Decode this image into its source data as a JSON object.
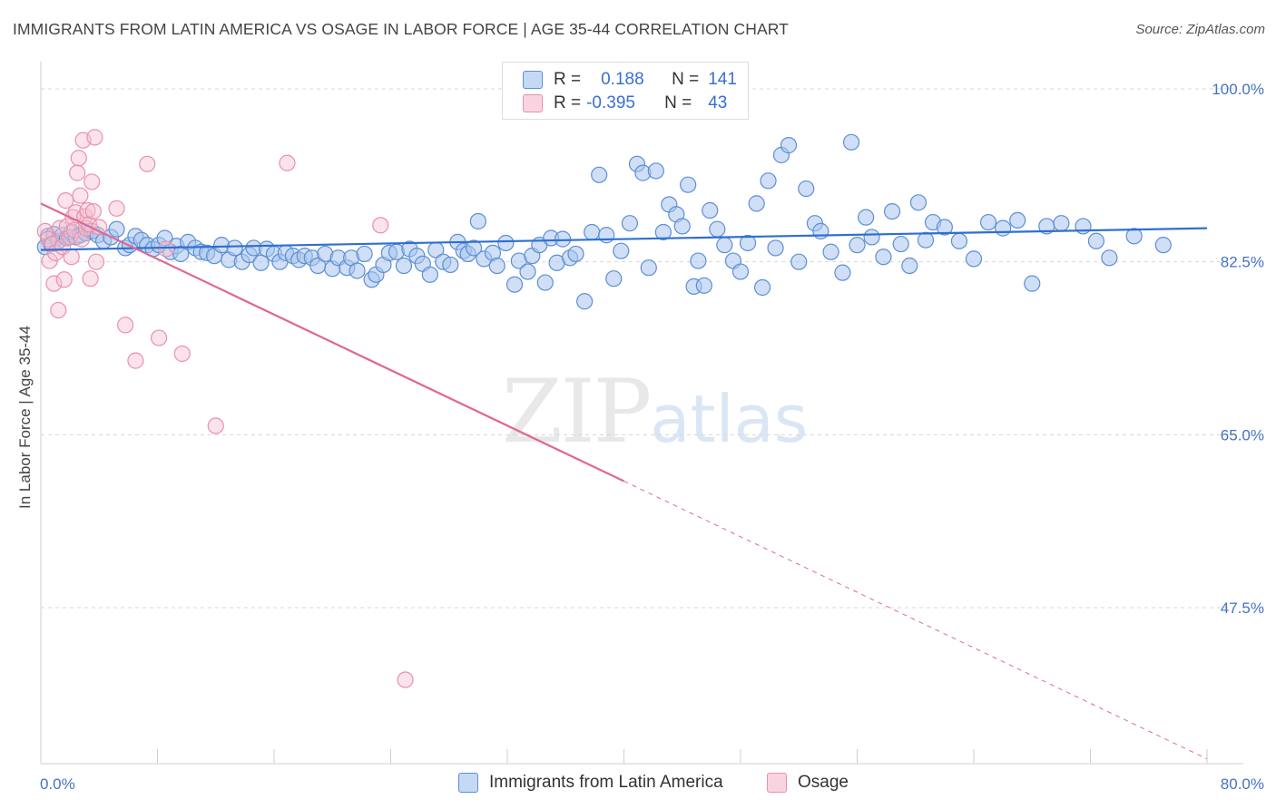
{
  "title": "IMMIGRANTS FROM LATIN AMERICA VS OSAGE IN LABOR FORCE | AGE 35-44 CORRELATION CHART",
  "source": "Source: ZipAtlas.com",
  "watermark": {
    "zip": "ZIP",
    "atlas": "atlas"
  },
  "legend": {
    "rows": [
      {
        "r_label": "R =",
        "r_value": "0.188",
        "n_label": "N =",
        "n_value": "141"
      },
      {
        "r_label": "R =",
        "r_value": "-0.395",
        "n_label": "N =",
        "n_value": "43"
      }
    ]
  },
  "colors": {
    "blue_fill": "#a9c4ec",
    "blue_stroke": "#5b8fd6",
    "blue_line": "#2d6fd1",
    "pink_fill": "#f5c0d1",
    "pink_stroke": "#e990ae",
    "pink_line": "#e06792",
    "grid": "#d8d8d8",
    "axis_label": "#4472c4"
  },
  "chart_data": {
    "type": "scatter",
    "title": "IMMIGRANTS FROM LATIN AMERICA VS OSAGE IN LABOR FORCE | AGE 35-44 CORRELATION CHART",
    "xlabel": "",
    "ylabel": "In Labor Force | Age 35-44",
    "xlim": [
      0,
      80
    ],
    "ylim": [
      31.5,
      102
    ],
    "x_tick_labels": [
      "0.0%",
      "80.0%"
    ],
    "y_ticks": [
      47.5,
      65.0,
      82.5,
      100.0
    ],
    "y_tick_labels": [
      "47.5%",
      "65.0%",
      "82.5%",
      "100.0%"
    ],
    "grid": true,
    "legend_position": "top-center",
    "series": [
      {
        "name": "Immigrants from Latin America",
        "r": 0.188,
        "n": 141,
        "trend": {
          "x": [
            0,
            80
          ],
          "y": [
            83.7,
            85.9
          ]
        },
        "points": [
          [
            0.3,
            84.0
          ],
          [
            0.5,
            85.1
          ],
          [
            0.7,
            84.3
          ],
          [
            0.9,
            85.3
          ],
          [
            1.2,
            84.6
          ],
          [
            1.5,
            85.2
          ],
          [
            1.8,
            84.9
          ],
          [
            2.1,
            85.5
          ],
          [
            2.4,
            85.0
          ],
          [
            2.7,
            85.2
          ],
          [
            3.1,
            85.4
          ],
          [
            3.5,
            85.6
          ],
          [
            3.9,
            85.2
          ],
          [
            4.3,
            84.6
          ],
          [
            4.8,
            85.0
          ],
          [
            5.2,
            85.8
          ],
          [
            5.8,
            83.9
          ],
          [
            6.1,
            84.2
          ],
          [
            6.5,
            85.1
          ],
          [
            6.9,
            84.7
          ],
          [
            7.3,
            84.2
          ],
          [
            7.7,
            83.8
          ],
          [
            8.1,
            84.2
          ],
          [
            8.5,
            84.9
          ],
          [
            8.9,
            83.5
          ],
          [
            9.3,
            84.1
          ],
          [
            9.6,
            83.3
          ],
          [
            10.1,
            84.5
          ],
          [
            10.6,
            83.9
          ],
          [
            11.0,
            83.5
          ],
          [
            11.4,
            83.4
          ],
          [
            11.9,
            83.1
          ],
          [
            12.4,
            84.2
          ],
          [
            12.9,
            82.7
          ],
          [
            13.3,
            83.9
          ],
          [
            13.8,
            82.5
          ],
          [
            14.3,
            83.2
          ],
          [
            14.6,
            83.9
          ],
          [
            15.1,
            82.4
          ],
          [
            15.5,
            83.8
          ],
          [
            16.0,
            83.3
          ],
          [
            16.4,
            82.5
          ],
          [
            16.8,
            83.4
          ],
          [
            17.3,
            83.1
          ],
          [
            17.7,
            82.7
          ],
          [
            18.1,
            83.1
          ],
          [
            18.6,
            82.9
          ],
          [
            19.0,
            82.1
          ],
          [
            19.5,
            83.3
          ],
          [
            20.0,
            81.8
          ],
          [
            20.4,
            82.9
          ],
          [
            21.0,
            81.9
          ],
          [
            21.3,
            82.9
          ],
          [
            21.7,
            81.6
          ],
          [
            22.2,
            83.3
          ],
          [
            22.7,
            80.7
          ],
          [
            23.0,
            81.2
          ],
          [
            23.5,
            82.2
          ],
          [
            23.9,
            83.4
          ],
          [
            24.4,
            83.5
          ],
          [
            24.9,
            82.1
          ],
          [
            25.3,
            83.8
          ],
          [
            25.8,
            83.1
          ],
          [
            26.2,
            82.3
          ],
          [
            26.7,
            81.2
          ],
          [
            27.1,
            83.7
          ],
          [
            27.6,
            82.5
          ],
          [
            28.1,
            82.2
          ],
          [
            28.6,
            84.5
          ],
          [
            29.0,
            83.6
          ],
          [
            29.3,
            83.3
          ],
          [
            29.7,
            83.9
          ],
          [
            30.0,
            86.6
          ],
          [
            30.4,
            82.8
          ],
          [
            31.0,
            83.4
          ],
          [
            31.3,
            82.1
          ],
          [
            31.9,
            84.4
          ],
          [
            32.5,
            80.2
          ],
          [
            32.8,
            82.6
          ],
          [
            33.4,
            81.5
          ],
          [
            33.7,
            83.1
          ],
          [
            34.2,
            84.2
          ],
          [
            34.6,
            80.4
          ],
          [
            35.0,
            84.9
          ],
          [
            35.4,
            82.4
          ],
          [
            35.8,
            84.8
          ],
          [
            36.3,
            82.9
          ],
          [
            36.7,
            83.3
          ],
          [
            37.3,
            78.5
          ],
          [
            37.8,
            85.5
          ],
          [
            38.3,
            91.3
          ],
          [
            38.8,
            85.2
          ],
          [
            39.3,
            80.8
          ],
          [
            39.8,
            83.6
          ],
          [
            40.4,
            86.4
          ],
          [
            40.9,
            92.4
          ],
          [
            41.3,
            91.5
          ],
          [
            41.7,
            81.9
          ],
          [
            42.2,
            91.7
          ],
          [
            42.7,
            85.5
          ],
          [
            43.1,
            88.3
          ],
          [
            43.6,
            87.3
          ],
          [
            44.0,
            86.1
          ],
          [
            44.4,
            90.3
          ],
          [
            44.8,
            80.0
          ],
          [
            45.1,
            82.6
          ],
          [
            45.5,
            80.1
          ],
          [
            45.9,
            87.7
          ],
          [
            46.4,
            85.8
          ],
          [
            46.9,
            84.2
          ],
          [
            47.5,
            82.6
          ],
          [
            48.0,
            81.5
          ],
          [
            48.5,
            84.4
          ],
          [
            49.1,
            88.4
          ],
          [
            49.5,
            79.9
          ],
          [
            49.9,
            90.7
          ],
          [
            50.4,
            83.9
          ],
          [
            50.8,
            93.3
          ],
          [
            51.3,
            94.3
          ],
          [
            52.0,
            82.5
          ],
          [
            52.5,
            89.9
          ],
          [
            53.1,
            86.4
          ],
          [
            53.5,
            85.6
          ],
          [
            54.2,
            83.5
          ],
          [
            55.0,
            81.4
          ],
          [
            55.6,
            94.6
          ],
          [
            56.0,
            84.2
          ],
          [
            56.6,
            87.0
          ],
          [
            57.0,
            85.0
          ],
          [
            57.8,
            83.0
          ],
          [
            58.4,
            87.6
          ],
          [
            59.0,
            84.3
          ],
          [
            59.6,
            82.1
          ],
          [
            60.2,
            88.5
          ],
          [
            60.7,
            84.7
          ],
          [
            61.2,
            86.5
          ],
          [
            62.0,
            86.0
          ],
          [
            63.0,
            84.6
          ],
          [
            64.0,
            82.8
          ],
          [
            65.0,
            86.5
          ],
          [
            66.0,
            85.9
          ],
          [
            67.0,
            86.7
          ],
          [
            68.0,
            80.3
          ],
          [
            69.0,
            86.1
          ],
          [
            70.0,
            86.4
          ],
          [
            71.5,
            86.1
          ],
          [
            72.4,
            84.6
          ],
          [
            73.3,
            82.9
          ],
          [
            75.0,
            85.1
          ],
          [
            77.0,
            84.2
          ]
        ]
      },
      {
        "name": "Osage",
        "r": -0.395,
        "n": 43,
        "trend": {
          "x": [
            0,
            40
          ],
          "y": [
            88.4,
            60.3
          ]
        },
        "trend_dashed": {
          "x": [
            40,
            80
          ],
          "y": [
            60.3,
            32.2
          ]
        },
        "points": [
          [
            0.3,
            85.6
          ],
          [
            0.5,
            84.8
          ],
          [
            0.6,
            82.6
          ],
          [
            0.8,
            84.3
          ],
          [
            0.9,
            80.3
          ],
          [
            1.0,
            83.4
          ],
          [
            1.2,
            77.6
          ],
          [
            1.3,
            85.9
          ],
          [
            1.5,
            84.0
          ],
          [
            1.6,
            80.7
          ],
          [
            1.7,
            88.7
          ],
          [
            1.8,
            86.1
          ],
          [
            2.0,
            85.0
          ],
          [
            2.1,
            83.0
          ],
          [
            2.2,
            87.0
          ],
          [
            2.3,
            85.7
          ],
          [
            2.4,
            87.5
          ],
          [
            2.5,
            91.5
          ],
          [
            2.6,
            93.0
          ],
          [
            2.7,
            89.2
          ],
          [
            2.8,
            84.8
          ],
          [
            2.9,
            94.8
          ],
          [
            3.0,
            87.1
          ],
          [
            3.1,
            85.9
          ],
          [
            3.2,
            87.7
          ],
          [
            3.3,
            86.3
          ],
          [
            3.4,
            80.8
          ],
          [
            3.5,
            90.6
          ],
          [
            3.6,
            87.6
          ],
          [
            3.7,
            95.1
          ],
          [
            3.8,
            82.5
          ],
          [
            4.0,
            86.0
          ],
          [
            5.2,
            87.9
          ],
          [
            5.8,
            76.1
          ],
          [
            6.5,
            72.5
          ],
          [
            7.3,
            92.4
          ],
          [
            8.1,
            74.8
          ],
          [
            8.6,
            83.8
          ],
          [
            9.7,
            73.2
          ],
          [
            12.0,
            65.9
          ],
          [
            16.9,
            92.5
          ],
          [
            23.3,
            86.2
          ],
          [
            25.0,
            40.2
          ]
        ]
      }
    ]
  },
  "bottom_legend": [
    "Immigrants from Latin America",
    "Osage"
  ]
}
